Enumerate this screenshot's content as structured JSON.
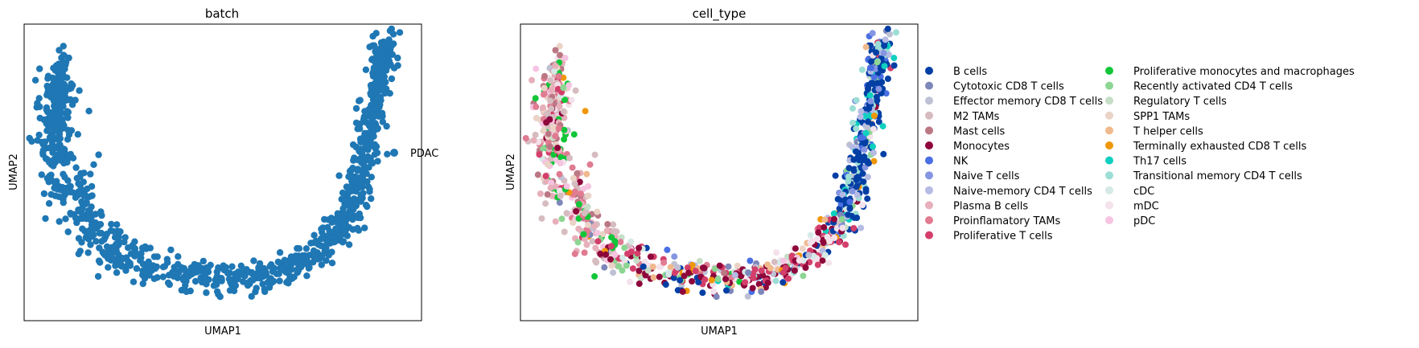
{
  "chart_data": [
    {
      "type": "scatter",
      "title": "batch",
      "xlabel": "UMAP1",
      "ylabel": "UMAP2",
      "ticks": "none",
      "grid": false,
      "legend_position": "right",
      "series": [
        {
          "name": "PDAC",
          "color": "#1f77b4"
        }
      ],
      "shape": {
        "description": "U-shaped UMAP embedding; single batch",
        "x_range": [
          0,
          10
        ],
        "y_range": [
          0,
          10
        ],
        "left_arm_top": [
          0.9,
          8.0
        ],
        "bottom_center": [
          5.5,
          0.6
        ],
        "right_arm_top": [
          9.4,
          9.6
        ]
      }
    },
    {
      "type": "scatter",
      "title": "cell_type",
      "xlabel": "UMAP1",
      "ylabel": "UMAP2",
      "ticks": "none",
      "grid": false,
      "legend_position": "right",
      "legend_columns": 2,
      "series": [
        {
          "name": "B cells",
          "color": "#023fa5",
          "region": "right-arm"
        },
        {
          "name": "Cytotoxic CD8 T cells",
          "color": "#7d87b9",
          "region": "mixed"
        },
        {
          "name": "Effector memory CD8 T cells",
          "color": "#bec1d4",
          "region": "mixed"
        },
        {
          "name": "M2 TAMs",
          "color": "#d6bcc0",
          "region": "left-arm"
        },
        {
          "name": "Mast cells",
          "color": "#bb7784",
          "region": "left-arm"
        },
        {
          "name": "Monocytes",
          "color": "#8e063b",
          "region": "bottom"
        },
        {
          "name": "NK",
          "color": "#4a6fe3",
          "region": "right-arm"
        },
        {
          "name": "Naive T cells",
          "color": "#8595e1",
          "region": "right-arm"
        },
        {
          "name": "Naive-memory CD4 T cells",
          "color": "#b5bbe3",
          "region": "right-arm"
        },
        {
          "name": "Plasma B cells",
          "color": "#e6afb9",
          "region": "left-arm"
        },
        {
          "name": "Proinflamatory TAMs",
          "color": "#e07b91",
          "region": "left-arm"
        },
        {
          "name": "Proliferative T cells",
          "color": "#d33f6a",
          "region": "bottom"
        },
        {
          "name": "Proliferative monocytes and macrophages",
          "color": "#11c638",
          "region": "left-arm"
        },
        {
          "name": "Recently activated CD4 T cells",
          "color": "#8dd593",
          "region": "mixed"
        },
        {
          "name": "Regulatory T cells",
          "color": "#c6dec7",
          "region": "mixed"
        },
        {
          "name": "SPP1 TAMs",
          "color": "#ead3c6",
          "region": "left-arm"
        },
        {
          "name": "T helper cells",
          "color": "#f0b98d",
          "region": "mixed"
        },
        {
          "name": "Terminally exhausted CD8 T cells",
          "color": "#ef9708",
          "region": "mixed"
        },
        {
          "name": "Th17 cells",
          "color": "#0fcfc0",
          "region": "right-arm"
        },
        {
          "name": "Transitional memory CD4 T cells",
          "color": "#9cded6",
          "region": "right-arm"
        },
        {
          "name": "cDC",
          "color": "#d5eae7",
          "region": "mixed"
        },
        {
          "name": "mDC",
          "color": "#f3e1eb",
          "region": "bottom"
        },
        {
          "name": "pDC",
          "color": "#f6c4e1",
          "region": "left-arm"
        }
      ]
    }
  ]
}
